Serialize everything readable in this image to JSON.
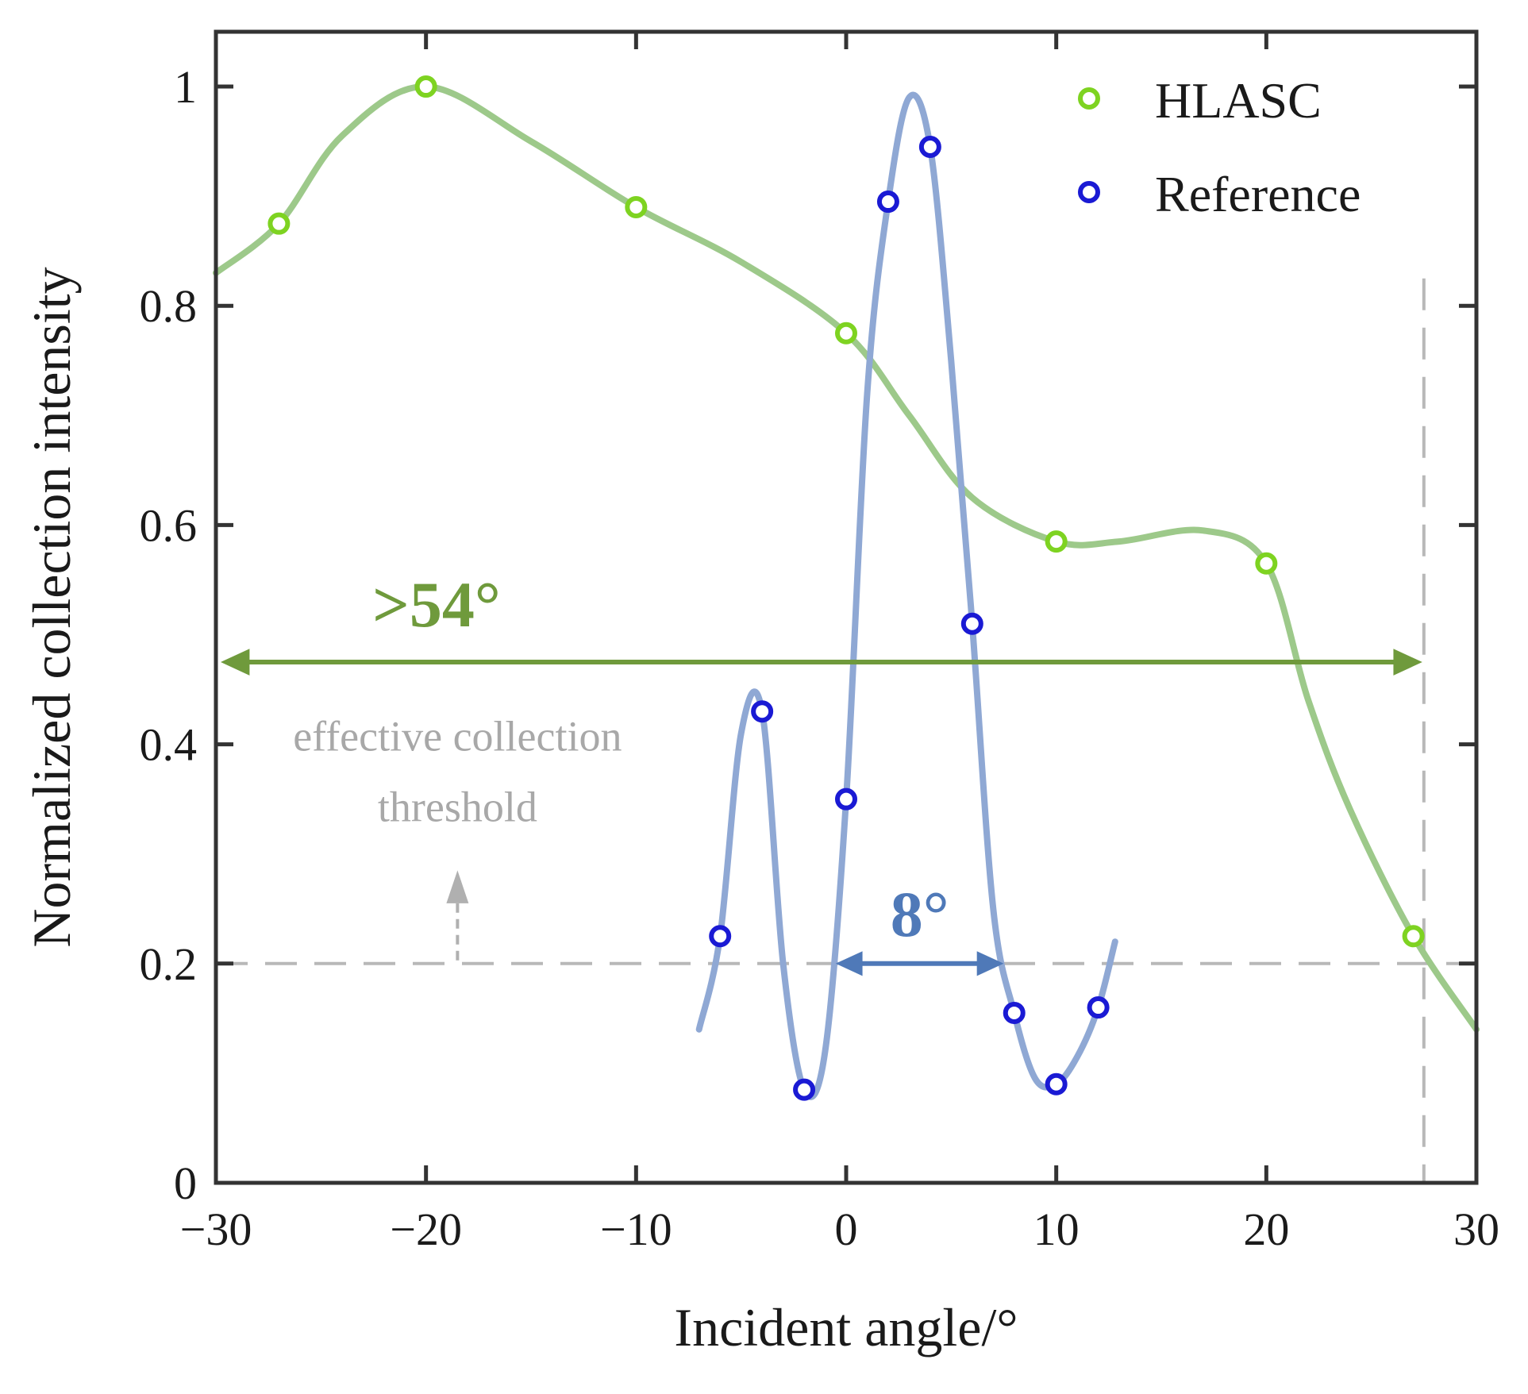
{
  "chart_data": {
    "type": "scatter",
    "xlabel": "Incident angle/°",
    "ylabel": "Normalized collection intensity",
    "xlim": [
      -30,
      30
    ],
    "ylim": [
      0,
      1.05
    ],
    "xticks": [
      -30,
      -20,
      -10,
      0,
      10,
      20,
      30
    ],
    "xtick_labels": [
      "−30",
      "−20",
      "−10",
      "0",
      "10",
      "20",
      "30"
    ],
    "yticks": [
      0,
      0.2,
      0.4,
      0.6,
      0.8,
      1
    ],
    "ytick_labels": [
      "0",
      "0.2",
      "0.4",
      "0.6",
      "0.8",
      "1"
    ],
    "legend_position": "top-right",
    "series": [
      {
        "name": "HLASC",
        "marker_color": "#7ed321",
        "line_color": "#9dc98a",
        "points": [
          [
            -27,
            0.875
          ],
          [
            -20,
            1.0
          ],
          [
            -10,
            0.89
          ],
          [
            0,
            0.775
          ],
          [
            10,
            0.585
          ],
          [
            20,
            0.565
          ],
          [
            27,
            0.225
          ]
        ],
        "curve": [
          [
            -30,
            0.83
          ],
          [
            -27,
            0.875
          ],
          [
            -24,
            0.955
          ],
          [
            -20,
            1.0
          ],
          [
            -15,
            0.95
          ],
          [
            -10,
            0.89
          ],
          [
            -5,
            0.84
          ],
          [
            0,
            0.775
          ],
          [
            3,
            0.7
          ],
          [
            6,
            0.625
          ],
          [
            10,
            0.585
          ],
          [
            13,
            0.585
          ],
          [
            17,
            0.595
          ],
          [
            20,
            0.565
          ],
          [
            22,
            0.44
          ],
          [
            24,
            0.34
          ],
          [
            27,
            0.225
          ],
          [
            30,
            0.14
          ]
        ]
      },
      {
        "name": "Reference",
        "marker_color": "#1a1ad4",
        "line_color": "#8fa8d4",
        "points": [
          [
            -6,
            0.225
          ],
          [
            -4,
            0.43
          ],
          [
            -2,
            0.085
          ],
          [
            0,
            0.35
          ],
          [
            2,
            0.895
          ],
          [
            4,
            0.945
          ],
          [
            6,
            0.51
          ],
          [
            8,
            0.155
          ],
          [
            10,
            0.09
          ],
          [
            12,
            0.16
          ]
        ],
        "curve": [
          [
            -7,
            0.14
          ],
          [
            -6,
            0.225
          ],
          [
            -5,
            0.41
          ],
          [
            -4,
            0.43
          ],
          [
            -3,
            0.2
          ],
          [
            -2,
            0.085
          ],
          [
            -1,
            0.12
          ],
          [
            0,
            0.35
          ],
          [
            1,
            0.72
          ],
          [
            2,
            0.895
          ],
          [
            3,
            0.99
          ],
          [
            4,
            0.945
          ],
          [
            5,
            0.75
          ],
          [
            6,
            0.51
          ],
          [
            7,
            0.25
          ],
          [
            8,
            0.155
          ],
          [
            9,
            0.095
          ],
          [
            10,
            0.09
          ],
          [
            11,
            0.115
          ],
          [
            12,
            0.16
          ],
          [
            12.8,
            0.22
          ]
        ]
      }
    ],
    "threshold": {
      "y": 0.2,
      "label_line1": "effective collection",
      "label_line2": "threshold"
    },
    "cutoff_line_x": 27.5,
    "hlasc_span": {
      "label": ">54°",
      "x_from": -30,
      "x_to": 27.5,
      "y": 0.475
    },
    "reference_span": {
      "label": "8°",
      "x_from": -0.5,
      "x_to": 7.5,
      "y": 0.2
    }
  }
}
